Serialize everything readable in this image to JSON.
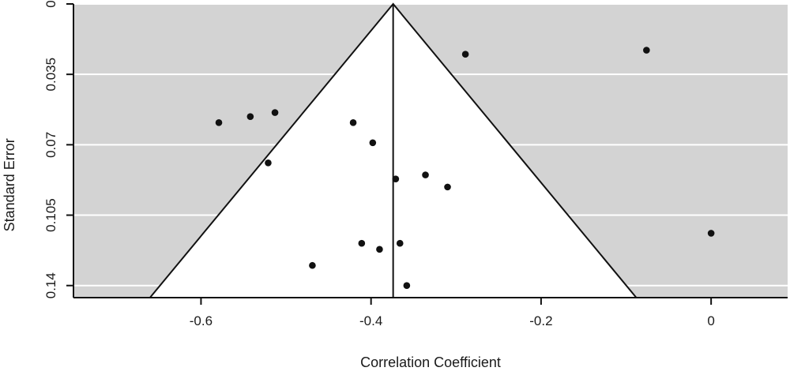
{
  "chart_data": {
    "type": "scatter",
    "subtype": "funnel-plot",
    "title": "",
    "xlabel": "Correlation Coefficient",
    "ylabel": "Standard Error",
    "xlim": [
      -0.75,
      0.09
    ],
    "ylim": [
      0,
      0.146
    ],
    "y_inverted": true,
    "x_ticks": [
      -0.6,
      -0.4,
      -0.2,
      0
    ],
    "x_tick_labels": [
      "-0.6",
      "-0.4",
      "-0.2",
      "0"
    ],
    "y_ticks": [
      0,
      0.035,
      0.07,
      0.105,
      0.14
    ],
    "y_tick_labels": [
      "0",
      "0.035",
      "0.07",
      "0.105",
      "0.14"
    ],
    "grid": "horizontal",
    "legend": "none",
    "pooled_estimate": -0.374,
    "funnel": {
      "apex": [
        -0.374,
        0
      ],
      "left_base": [
        -0.66,
        0.146
      ],
      "right_base": [
        -0.088,
        0.146
      ]
    },
    "points": [
      {
        "x": -0.289,
        "y": 0.025
      },
      {
        "x": -0.076,
        "y": 0.023
      },
      {
        "x": -0.579,
        "y": 0.059
      },
      {
        "x": -0.542,
        "y": 0.056
      },
      {
        "x": -0.513,
        "y": 0.054
      },
      {
        "x": -0.421,
        "y": 0.059
      },
      {
        "x": -0.398,
        "y": 0.069
      },
      {
        "x": -0.521,
        "y": 0.079
      },
      {
        "x": -0.371,
        "y": 0.087
      },
      {
        "x": -0.336,
        "y": 0.085
      },
      {
        "x": -0.31,
        "y": 0.091
      },
      {
        "x": 0.0,
        "y": 0.114
      },
      {
        "x": -0.411,
        "y": 0.119
      },
      {
        "x": -0.39,
        "y": 0.122
      },
      {
        "x": -0.366,
        "y": 0.119
      },
      {
        "x": -0.469,
        "y": 0.13
      },
      {
        "x": -0.358,
        "y": 0.14
      }
    ],
    "colors": {
      "panel_background": "#d3d3d3",
      "funnel_fill": "#ffffff",
      "gridline": "#ffffff",
      "line": "#111111",
      "point": "#111111"
    }
  }
}
